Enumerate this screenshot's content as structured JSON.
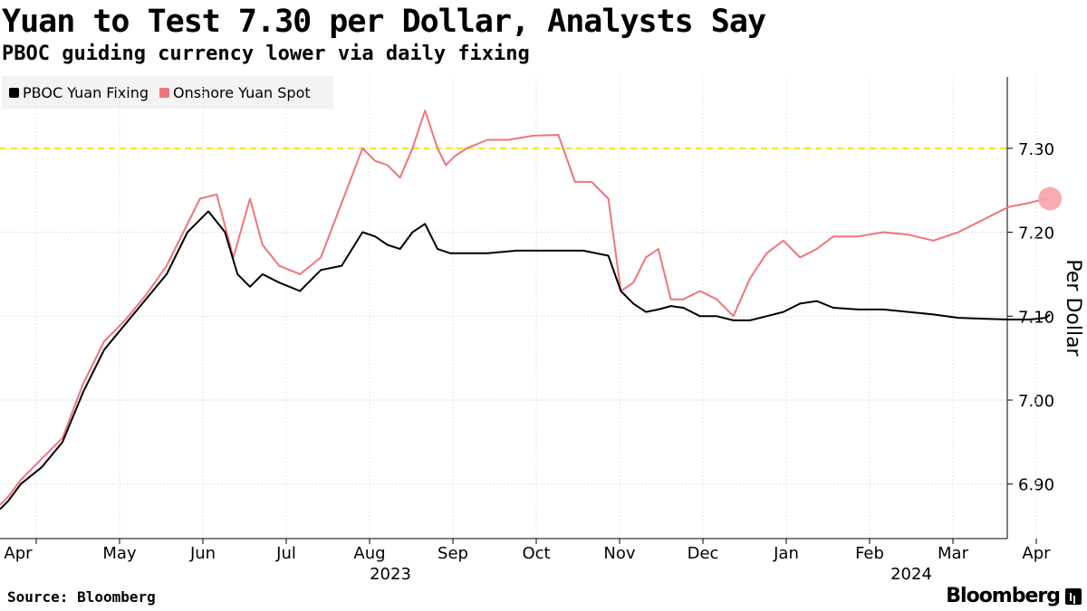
{
  "header": {
    "title": "Yuan to Test 7.30 per Dollar, Analysts Say",
    "subtitle": "PBOC guiding currency lower via daily fixing"
  },
  "legend": {
    "items": [
      {
        "label": "PBOC Yuan Fixing",
        "color": "#000000"
      },
      {
        "label": "Onshore Yuan Spot",
        "color": "#f0747a"
      }
    ]
  },
  "footer": {
    "source": "Source: Bloomberg",
    "logo": "Bloomberg"
  },
  "chart_data": {
    "type": "line",
    "title": "Yuan to Test 7.30 per Dollar, Analysts Say",
    "ylabel": "Per Dollar",
    "ylim": [
      6.835,
      7.385
    ],
    "yticks": [
      6.9,
      7.0,
      7.1,
      7.2,
      7.3
    ],
    "ytick_labels": [
      "6.90",
      "7.00",
      "7.10",
      "7.20",
      "7.30"
    ],
    "x_range": [
      "2023-03-30",
      "2024-04-06"
    ],
    "x_months": [
      {
        "label": "Apr",
        "pos": 0.5
      },
      {
        "label": "May",
        "pos": 1.5
      },
      {
        "label": "Jun",
        "pos": 2.5
      },
      {
        "label": "Jul",
        "pos": 3.5
      },
      {
        "label": "Aug",
        "pos": 4.5
      },
      {
        "label": "Sep",
        "pos": 5.5
      },
      {
        "label": "Oct",
        "pos": 6.5
      },
      {
        "label": "Nov",
        "pos": 7.5
      },
      {
        "label": "Dec",
        "pos": 8.5
      },
      {
        "label": "Jan",
        "pos": 9.5
      },
      {
        "label": "Feb",
        "pos": 10.5
      },
      {
        "label": "Mar",
        "pos": 11.5
      },
      {
        "label": "Apr",
        "pos": 12.5
      }
    ],
    "year_labels": [
      {
        "label": "2023",
        "pos": 4.75
      },
      {
        "label": "2024",
        "pos": 11.0
      }
    ],
    "reference_line": {
      "value": 7.3,
      "color": "#f5e600"
    },
    "series": [
      {
        "name": "PBOC Yuan Fixing",
        "color": "#000000",
        "x": [
          0,
          0.1,
          0.25,
          0.5,
          0.75,
          1.0,
          1.25,
          1.5,
          1.75,
          2.0,
          2.25,
          2.5,
          2.7,
          2.85,
          3.0,
          3.15,
          3.35,
          3.6,
          3.85,
          4.1,
          4.35,
          4.5,
          4.65,
          4.8,
          4.95,
          5.1,
          5.25,
          5.4,
          5.6,
          5.85,
          6.2,
          6.6,
          7.0,
          7.3,
          7.45,
          7.6,
          7.75,
          7.9,
          8.05,
          8.2,
          8.4,
          8.6,
          8.8,
          9.0,
          9.2,
          9.4,
          9.6,
          9.8,
          10.0,
          10.3,
          10.6,
          10.9,
          11.2,
          11.5,
          11.8,
          12.1,
          12.35,
          12.55,
          12.6
        ],
        "values": [
          6.87,
          6.88,
          6.9,
          6.92,
          6.95,
          7.01,
          7.06,
          7.09,
          7.12,
          7.15,
          7.2,
          7.225,
          7.2,
          7.15,
          7.135,
          7.15,
          7.14,
          7.13,
          7.155,
          7.16,
          7.2,
          7.195,
          7.185,
          7.18,
          7.2,
          7.21,
          7.18,
          7.175,
          7.175,
          7.175,
          7.178,
          7.178,
          7.178,
          7.172,
          7.13,
          7.115,
          7.105,
          7.108,
          7.112,
          7.11,
          7.1,
          7.1,
          7.095,
          7.095,
          7.1,
          7.105,
          7.115,
          7.118,
          7.11,
          7.108,
          7.108,
          7.105,
          7.102,
          7.098,
          7.097,
          7.096,
          7.096,
          7.098,
          7.102
        ]
      },
      {
        "name": "Onshore Yuan Spot",
        "color": "#f0747a",
        "x": [
          0,
          0.1,
          0.25,
          0.5,
          0.75,
          1.0,
          1.25,
          1.5,
          1.75,
          2.0,
          2.2,
          2.4,
          2.6,
          2.8,
          3.0,
          3.15,
          3.35,
          3.6,
          3.85,
          4.1,
          4.35,
          4.5,
          4.65,
          4.8,
          4.95,
          5.1,
          5.25,
          5.35,
          5.45,
          5.6,
          5.85,
          6.1,
          6.4,
          6.7,
          6.9,
          7.1,
          7.3,
          7.45,
          7.6,
          7.75,
          7.9,
          8.05,
          8.2,
          8.4,
          8.6,
          8.8,
          9.0,
          9.2,
          9.4,
          9.6,
          9.8,
          10.0,
          10.3,
          10.6,
          10.9,
          11.2,
          11.5,
          11.8,
          12.1,
          12.35,
          12.55,
          12.6
        ],
        "values": [
          6.875,
          6.885,
          6.905,
          6.93,
          6.955,
          7.02,
          7.07,
          7.095,
          7.125,
          7.16,
          7.2,
          7.24,
          7.245,
          7.17,
          7.24,
          7.185,
          7.16,
          7.15,
          7.17,
          7.235,
          7.3,
          7.285,
          7.28,
          7.265,
          7.3,
          7.345,
          7.3,
          7.28,
          7.29,
          7.3,
          7.31,
          7.31,
          7.315,
          7.316,
          7.26,
          7.26,
          7.24,
          7.13,
          7.14,
          7.17,
          7.18,
          7.12,
          7.12,
          7.13,
          7.12,
          7.1,
          7.145,
          7.175,
          7.19,
          7.17,
          7.18,
          7.195,
          7.195,
          7.2,
          7.197,
          7.19,
          7.2,
          7.215,
          7.23,
          7.235,
          7.24,
          7.24
        ]
      }
    ],
    "end_marker": {
      "series": "Onshore Yuan Spot",
      "value": 7.24
    }
  }
}
